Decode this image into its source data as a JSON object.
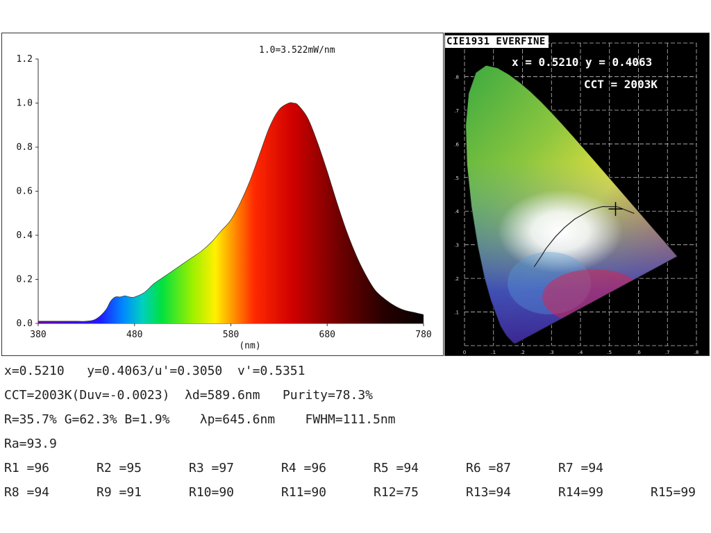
{
  "chart_data": [
    {
      "type": "area",
      "title": "1.0=3.522mW/nm",
      "xlabel": "(nm)",
      "ylabel": "",
      "xlim": [
        380,
        780
      ],
      "ylim": [
        0,
        1.2
      ],
      "x_ticks": [
        "380",
        "480",
        "580",
        "680",
        "780"
      ],
      "y_ticks": [
        "0.0",
        "0.2",
        "0.4",
        "0.6",
        "0.8",
        "1.0",
        "1.2"
      ],
      "fill": "visible-spectrum gradient",
      "x": [
        380,
        390,
        400,
        410,
        420,
        430,
        440,
        450,
        455,
        460,
        465,
        470,
        475,
        480,
        490,
        500,
        510,
        520,
        530,
        540,
        550,
        560,
        570,
        580,
        590,
        600,
        610,
        620,
        630,
        640,
        645,
        650,
        660,
        670,
        680,
        690,
        700,
        710,
        720,
        730,
        740,
        750,
        760,
        770,
        780
      ],
      "values": [
        0.01,
        0.01,
        0.01,
        0.01,
        0.01,
        0.01,
        0.02,
        0.06,
        0.1,
        0.12,
        0.12,
        0.125,
        0.12,
        0.12,
        0.14,
        0.18,
        0.21,
        0.24,
        0.27,
        0.3,
        0.33,
        0.37,
        0.42,
        0.47,
        0.55,
        0.65,
        0.77,
        0.89,
        0.97,
        1.0,
        1.0,
        0.99,
        0.93,
        0.82,
        0.69,
        0.55,
        0.42,
        0.31,
        0.22,
        0.15,
        0.11,
        0.08,
        0.06,
        0.05,
        0.04
      ]
    },
    {
      "type": "scatter",
      "title": "CIE1931 EVERFINE",
      "xlabel": "",
      "ylabel": "",
      "xlim": [
        0,
        0.8
      ],
      "ylim": [
        0,
        0.9
      ],
      "x": [
        0.521
      ],
      "y": [
        0.4063
      ],
      "annotations": [
        "x = 0.5210  y = 0.4063",
        "CCT = 2003K"
      ]
    }
  ],
  "cie": {
    "title": "CIE1931 EVERFINE",
    "xy_readout": "x = 0.5210  y = 0.4063",
    "cct_readout": "CCT = 2003K",
    "x_ticks": [
      "0",
      ".1",
      ".2",
      ".3",
      ".4",
      ".5",
      ".6",
      ".7",
      ".8"
    ],
    "y_ticks": [
      ".1",
      ".2",
      ".3",
      ".4",
      ".5",
      ".6",
      ".7",
      ".8"
    ]
  },
  "readouts": {
    "line1": "x=0.5210   y=0.4063/u'=0.3050  v'=0.5351",
    "line2": "CCT=2003K(Duv=-0.0023)  λd=589.6nm   Purity=78.3%",
    "line3": "R=35.7% G=62.3% B=1.9%    λp=645.6nm    FWHM=111.5nm",
    "line4": "Ra=93.9",
    "r_values": [
      "R1 =96",
      "R2 =95",
      "R3 =97",
      "R4 =96",
      "R5 =94",
      "R6 =87",
      "R7 =94",
      "R8 =94",
      "R9 =91",
      "R10=90",
      "R11=90",
      "R12=75",
      "R13=94",
      "R14=99",
      "R15=99"
    ]
  }
}
